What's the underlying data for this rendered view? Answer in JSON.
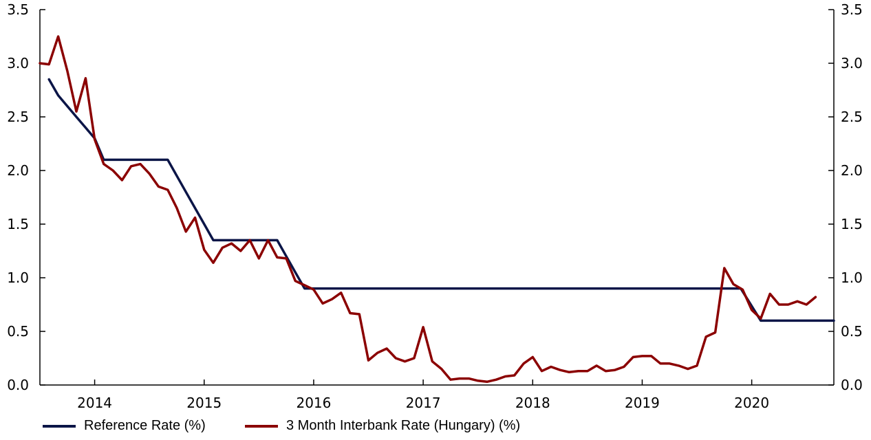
{
  "chart_data": {
    "type": "line",
    "x_ticks": [
      "2014",
      "2015",
      "2016",
      "2017",
      "2018",
      "2019",
      "2020"
    ],
    "y_ticks_left": [
      "0.0",
      "0.5",
      "1.0",
      "1.5",
      "2.0",
      "2.5",
      "3.0",
      "3.5"
    ],
    "y_ticks_right": [
      "0.0",
      "0.5",
      "1.0",
      "1.5",
      "2.0",
      "2.5",
      "3.0",
      "3.5"
    ],
    "ylim": [
      0,
      3.5
    ],
    "xlim": [
      2013.5,
      2020.75
    ],
    "grid": false,
    "legend_position": "bottom",
    "series": [
      {
        "name": "Reference Rate (%)",
        "color": "#0b1547",
        "points": [
          [
            2013.583,
            2.85
          ],
          [
            2013.667,
            2.7
          ],
          [
            2013.75,
            2.6
          ],
          [
            2013.833,
            2.5
          ],
          [
            2013.917,
            2.4
          ],
          [
            2014.0,
            2.3
          ],
          [
            2014.083,
            2.1
          ],
          [
            2014.167,
            2.1
          ],
          [
            2014.25,
            2.1
          ],
          [
            2014.333,
            2.1
          ],
          [
            2014.417,
            2.1
          ],
          [
            2014.5,
            2.1
          ],
          [
            2014.583,
            2.1
          ],
          [
            2014.667,
            2.1
          ],
          [
            2014.75,
            1.95
          ],
          [
            2014.833,
            1.8
          ],
          [
            2014.917,
            1.65
          ],
          [
            2015.0,
            1.5
          ],
          [
            2015.083,
            1.35
          ],
          [
            2015.167,
            1.35
          ],
          [
            2015.25,
            1.35
          ],
          [
            2015.333,
            1.35
          ],
          [
            2015.417,
            1.35
          ],
          [
            2015.5,
            1.35
          ],
          [
            2015.583,
            1.35
          ],
          [
            2015.667,
            1.35
          ],
          [
            2015.75,
            1.2
          ],
          [
            2015.833,
            1.05
          ],
          [
            2015.917,
            0.9
          ],
          [
            2016.0,
            0.9
          ],
          [
            2016.5,
            0.9
          ],
          [
            2017.0,
            0.9
          ],
          [
            2017.5,
            0.9
          ],
          [
            2018.0,
            0.9
          ],
          [
            2018.5,
            0.9
          ],
          [
            2019.0,
            0.9
          ],
          [
            2019.5,
            0.9
          ],
          [
            2019.75,
            0.9
          ],
          [
            2019.9,
            0.9
          ],
          [
            2020.083,
            0.6
          ],
          [
            2020.25,
            0.6
          ],
          [
            2020.5,
            0.6
          ],
          [
            2020.75,
            0.6
          ]
        ]
      },
      {
        "name": "3 Month Interbank Rate (Hungary) (%)",
        "color": "#8b0000",
        "points": [
          [
            2013.5,
            3.0
          ],
          [
            2013.583,
            2.99
          ],
          [
            2013.667,
            3.25
          ],
          [
            2013.75,
            2.93
          ],
          [
            2013.833,
            2.55
          ],
          [
            2013.917,
            2.86
          ],
          [
            2014.0,
            2.29
          ],
          [
            2014.083,
            2.06
          ],
          [
            2014.167,
            2.0
          ],
          [
            2014.25,
            1.91
          ],
          [
            2014.333,
            2.04
          ],
          [
            2014.417,
            2.06
          ],
          [
            2014.5,
            1.97
          ],
          [
            2014.583,
            1.85
          ],
          [
            2014.667,
            1.82
          ],
          [
            2014.75,
            1.65
          ],
          [
            2014.833,
            1.43
          ],
          [
            2014.917,
            1.56
          ],
          [
            2015.0,
            1.26
          ],
          [
            2015.083,
            1.14
          ],
          [
            2015.167,
            1.28
          ],
          [
            2015.25,
            1.32
          ],
          [
            2015.333,
            1.25
          ],
          [
            2015.417,
            1.35
          ],
          [
            2015.5,
            1.18
          ],
          [
            2015.583,
            1.35
          ],
          [
            2015.667,
            1.19
          ],
          [
            2015.75,
            1.18
          ],
          [
            2015.833,
            0.97
          ],
          [
            2015.917,
            0.93
          ],
          [
            2016.0,
            0.89
          ],
          [
            2016.083,
            0.76
          ],
          [
            2016.167,
            0.8
          ],
          [
            2016.25,
            0.86
          ],
          [
            2016.333,
            0.67
          ],
          [
            2016.417,
            0.66
          ],
          [
            2016.5,
            0.23
          ],
          [
            2016.583,
            0.3
          ],
          [
            2016.667,
            0.34
          ],
          [
            2016.75,
            0.25
          ],
          [
            2016.833,
            0.22
          ],
          [
            2016.917,
            0.25
          ],
          [
            2017.0,
            0.54
          ],
          [
            2017.083,
            0.22
          ],
          [
            2017.167,
            0.15
          ],
          [
            2017.25,
            0.05
          ],
          [
            2017.333,
            0.06
          ],
          [
            2017.417,
            0.06
          ],
          [
            2017.5,
            0.04
          ],
          [
            2017.583,
            0.03
          ],
          [
            2017.667,
            0.05
          ],
          [
            2017.75,
            0.08
          ],
          [
            2017.833,
            0.09
          ],
          [
            2017.917,
            0.2
          ],
          [
            2018.0,
            0.26
          ],
          [
            2018.083,
            0.13
          ],
          [
            2018.167,
            0.17
          ],
          [
            2018.25,
            0.14
          ],
          [
            2018.333,
            0.12
          ],
          [
            2018.417,
            0.13
          ],
          [
            2018.5,
            0.13
          ],
          [
            2018.583,
            0.18
          ],
          [
            2018.667,
            0.13
          ],
          [
            2018.75,
            0.14
          ],
          [
            2018.833,
            0.17
          ],
          [
            2018.917,
            0.26
          ],
          [
            2019.0,
            0.27
          ],
          [
            2019.083,
            0.27
          ],
          [
            2019.167,
            0.2
          ],
          [
            2019.25,
            0.2
          ],
          [
            2019.333,
            0.18
          ],
          [
            2019.417,
            0.15
          ],
          [
            2019.5,
            0.18
          ],
          [
            2019.583,
            0.45
          ],
          [
            2019.667,
            0.49
          ],
          [
            2019.75,
            1.09
          ],
          [
            2019.833,
            0.94
          ],
          [
            2019.917,
            0.89
          ],
          [
            2020.0,
            0.7
          ],
          [
            2020.083,
            0.62
          ],
          [
            2020.167,
            0.85
          ],
          [
            2020.25,
            0.75
          ],
          [
            2020.333,
            0.75
          ],
          [
            2020.417,
            0.78
          ],
          [
            2020.5,
            0.75
          ],
          [
            2020.583,
            0.82
          ]
        ]
      }
    ]
  }
}
